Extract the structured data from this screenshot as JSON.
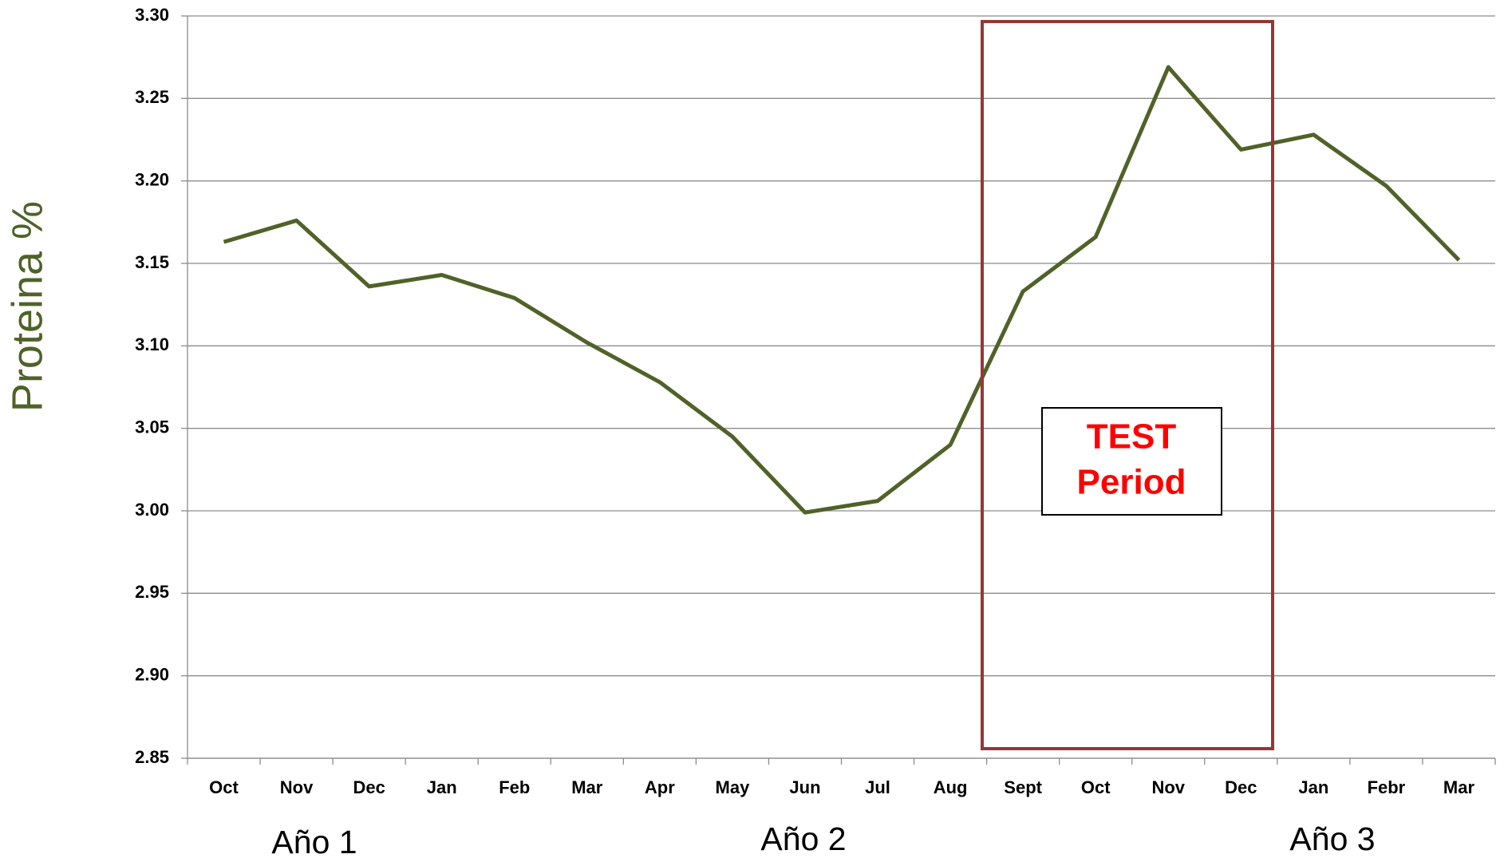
{
  "chart_data": {
    "type": "line",
    "y_label": "Proteina %",
    "categories": [
      "Oct",
      "Nov",
      "Dec",
      "Jan",
      "Feb",
      "Mar",
      "Apr",
      "May",
      "Jun",
      "Jul",
      "Aug",
      "Sept",
      "Oct",
      "Nov",
      "Dec",
      "Jan",
      "Febr",
      "Mar"
    ],
    "series": [
      {
        "color": "#4f6228",
        "values": [
          3.163,
          3.176,
          3.136,
          3.143,
          3.129,
          3.102,
          3.078,
          3.045,
          2.999,
          3.006,
          3.04,
          3.133,
          3.166,
          3.269,
          3.219,
          3.228,
          3.197,
          3.152
        ]
      }
    ],
    "ylim": [
      2.85,
      3.3
    ],
    "yticks": [
      2.85,
      {
        "value": 2.9,
        "label": "2.90"
      },
      2.95,
      {
        "value": 3.0,
        "label": "3.00"
      },
      3.05,
      {
        "value": 3.1,
        "label": "3.10"
      },
      3.15,
      {
        "value": 3.2,
        "label": "3.20"
      },
      3.25,
      {
        "value": 3.3,
        "label": "3.30"
      }
    ],
    "grid": true,
    "annotations": [
      "TEST",
      "Period"
    ],
    "year_labels": [
      "Año 1",
      "Año 2",
      "Año 3"
    ]
  }
}
